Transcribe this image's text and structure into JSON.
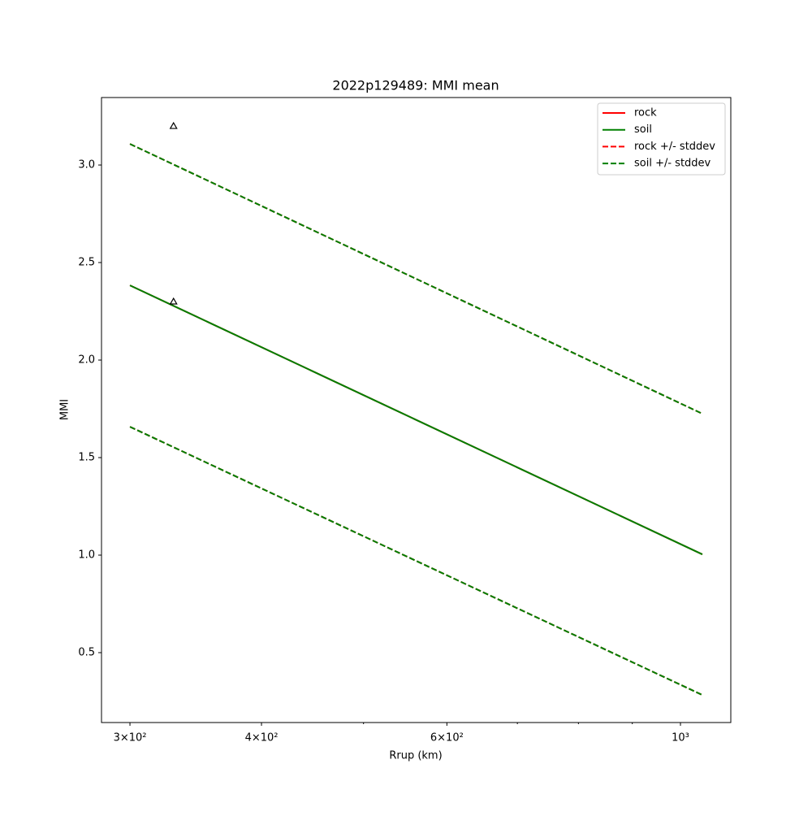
{
  "chart_data": {
    "type": "line",
    "title": "2022p129489: MMI mean",
    "xlabel": "Rrup (km)",
    "ylabel": "MMI",
    "xscale": "log",
    "x": [
      300,
      1049
    ],
    "series": [
      {
        "name": "rock",
        "color": "#ff0000",
        "dash": false,
        "values": [
          2.383,
          1.004
        ]
      },
      {
        "name": "soil",
        "color": "#008000",
        "dash": false,
        "values": [
          2.383,
          1.004
        ]
      },
      {
        "name": "rock +/- stddev",
        "color": "#ff0000",
        "dash": true,
        "values": [
          3.108,
          1.725
        ],
        "lower": [
          1.658,
          0.283
        ]
      },
      {
        "name": "soil +/- stddev",
        "color": "#008000",
        "dash": true,
        "values": [
          3.108,
          1.725
        ],
        "lower": [
          1.658,
          0.283
        ]
      }
    ],
    "points": {
      "x": [
        330,
        330
      ],
      "values": [
        3.2,
        2.3
      ]
    },
    "xlim": [
      281.9,
      1116.4
    ],
    "ylim": [
      0.1417,
      3.346
    ],
    "xticks": [
      {
        "value": 300,
        "label": "3×10²"
      },
      {
        "value": 400,
        "label": "4×10²"
      },
      {
        "value": 600,
        "label": "6×10²"
      },
      {
        "value": 1000,
        "label": "10³"
      }
    ],
    "xminorticks": [
      500,
      700,
      800,
      900
    ],
    "yticks": [
      0.5,
      {
        "value": 1,
        "label": "1.0"
      },
      1.5,
      {
        "value": 2,
        "label": "2.0"
      },
      2.5,
      {
        "value": 3,
        "label": "3.0"
      }
    ],
    "legend": "upper right"
  }
}
